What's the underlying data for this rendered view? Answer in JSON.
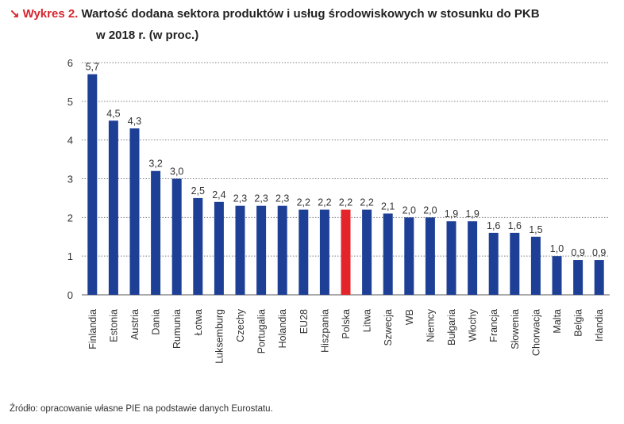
{
  "title": {
    "arrow_icon": "arrow-down-right-icon",
    "lead": "Wykres 2.",
    "line1": "Wartość dodana sektora produktów i usług środowiskowych w stosunku do PKB",
    "line2": "w 2018 r. (w proc.)"
  },
  "source": "Źródło: opracowanie własne PIE na podstawie danych Eurostatu.",
  "colors": {
    "bar": "#1e3f96",
    "highlight": "#e3242b",
    "grid": "#7f7f7f"
  },
  "chart_data": {
    "type": "bar",
    "categories": [
      "Finlandia",
      "Estonia",
      "Austria",
      "Dania",
      "Rumunia",
      "Łotwa",
      "Luksemburg",
      "Czechy",
      "Portugalia",
      "Holandia",
      "EU28",
      "Hiszpania",
      "Polska",
      "Litwa",
      "Szwecja",
      "WB",
      "Niemcy",
      "Bułgaria",
      "Włochy",
      "Francja",
      "Słowenia",
      "Chorwacja",
      "Malta",
      "Belgia",
      "Irlandia"
    ],
    "values": [
      5.7,
      4.5,
      4.3,
      3.2,
      3.0,
      2.5,
      2.4,
      2.3,
      2.3,
      2.3,
      2.2,
      2.2,
      2.2,
      2.2,
      2.1,
      2.0,
      2.0,
      1.9,
      1.9,
      1.6,
      1.6,
      1.5,
      1.0,
      0.9,
      0.9
    ],
    "value_labels": [
      "5,7",
      "4,5",
      "4,3",
      "3,2",
      "3,0",
      "2,5",
      "2,4",
      "2,3",
      "2,3",
      "2,3",
      "2,2",
      "2,2",
      "2,2",
      "2,2",
      "2,1",
      "2,0",
      "2,0",
      "1,9",
      "1,9",
      "1,6",
      "1,6",
      "1,5",
      "1,0",
      "0,9",
      "0,9"
    ],
    "highlight": "Polska",
    "yticks": [
      "0",
      "1",
      "2",
      "3",
      "4",
      "5",
      "6"
    ],
    "ylim": [
      0,
      6
    ],
    "grid": true,
    "legend": "none"
  }
}
